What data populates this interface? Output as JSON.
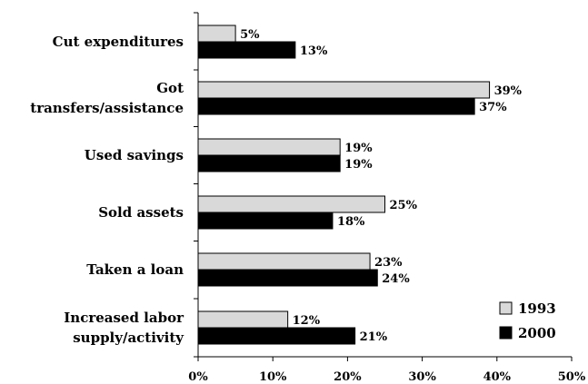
{
  "chart_data": {
    "type": "bar",
    "orientation": "horizontal",
    "categories": [
      [
        "Cut expenditures"
      ],
      [
        "Got",
        "transfers/assistance"
      ],
      [
        "Used savings"
      ],
      [
        "Sold assets"
      ],
      [
        "Taken a loan"
      ],
      [
        "Increased labor",
        "supply/activity"
      ]
    ],
    "series": [
      {
        "name": "1993",
        "color": "#d9d9d9",
        "values": [
          5,
          39,
          19,
          25,
          23,
          12
        ],
        "labels": [
          "5%",
          "39%",
          "19%",
          "25%",
          "23%",
          "12%"
        ]
      },
      {
        "name": "2000",
        "color": "#000000",
        "values": [
          13,
          37,
          19,
          18,
          24,
          21
        ],
        "labels": [
          "13%",
          "37%",
          "19%",
          "18%",
          "24%",
          "21%"
        ]
      }
    ],
    "x_ticks": [
      "0%",
      "10%",
      "20%",
      "30%",
      "40%",
      "50%"
    ],
    "xlim": [
      0,
      50
    ],
    "legend_position": "bottom-right",
    "grid": false
  }
}
